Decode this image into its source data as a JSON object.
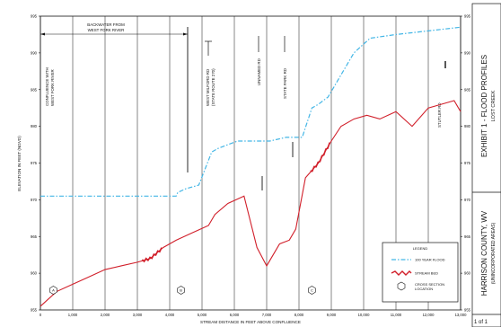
{
  "chart_data": {
    "type": "line",
    "xlabel": "STREAM DISTANCE IN FEET ABOVE CONFLUENCE",
    "ylabel": "ELEVATION IN FEET (NGVD)",
    "xlim": [
      0,
      13000
    ],
    "ylim": [
      955,
      995
    ],
    "x_ticks": [
      "0",
      "1,000",
      "2,000",
      "3,000",
      "4,000",
      "5,000",
      "6,000",
      "7,000",
      "8,000",
      "9,000",
      "10,000",
      "11,000",
      "12,000",
      "13,000"
    ],
    "y_ticks": [
      "955",
      "960",
      "965",
      "970",
      "975",
      "980",
      "985",
      "990",
      "995"
    ],
    "series": [
      {
        "name": "100 YEAR FLOOD",
        "x": [
          0,
          4200,
          4250,
          4500,
          4900,
          5300,
          5500,
          6100,
          7100,
          7600,
          8100,
          8400,
          8600,
          8900,
          9300,
          9700,
          10200,
          11000,
          12000,
          13000
        ],
        "y": [
          970.5,
          970.5,
          971.0,
          971.5,
          972.0,
          976.5,
          977.0,
          978.0,
          978.0,
          978.5,
          978.5,
          982.5,
          983.0,
          984.0,
          987.0,
          990.0,
          992.0,
          992.5,
          993.0,
          993.5
        ]
      },
      {
        "name": "STREAM BED",
        "x": [
          0,
          500,
          1000,
          1500,
          2000,
          2500,
          3000,
          3400,
          3800,
          4200,
          4700,
          5200,
          5400,
          5800,
          6300,
          6700,
          7000,
          7400,
          7700,
          7900,
          8200,
          8600,
          9000,
          9300,
          9700,
          10100,
          10500,
          11000,
          11500,
          12000,
          12400,
          12800,
          13000
        ],
        "y": [
          955.5,
          957.5,
          958.5,
          959.5,
          960.5,
          961.0,
          961.5,
          962.0,
          963.5,
          964.5,
          965.5,
          966.5,
          968.0,
          969.5,
          970.5,
          963.5,
          961.0,
          964.0,
          964.5,
          966.0,
          973.0,
          975.0,
          978.0,
          980.0,
          981.0,
          981.5,
          981.0,
          982.0,
          980.0,
          982.5,
          983.0,
          983.5,
          982.0
        ]
      }
    ],
    "legend_position": "bottom-right",
    "grid": true
  },
  "annotations": {
    "backwater_line1": "BACKWATER FROM",
    "backwater_line2": "WEST FORK RIVER",
    "confluence_line1": "CONFLUENCE WITH",
    "confluence_line2": "WEST FORK RIVER",
    "west_milford_line1": "WEST MILFORD RD",
    "west_milford_line2": "(STATE ROUTE 270)",
    "unnamed_rd": "UNNAMED RD",
    "state_park_rd": "STATE PARK RD",
    "stutler_rd": "STUTLER RD"
  },
  "section_markers": [
    {
      "letter": "A",
      "x": 400
    },
    {
      "letter": "B",
      "x": 4350
    },
    {
      "letter": "C",
      "x": 8400
    }
  ],
  "legend": {
    "title": "LEGEND",
    "flood": "100 YEAR FLOOD",
    "bed": "STREAM BED",
    "cross_line1": "CROSS SECTION",
    "cross_line2": "LOCATION"
  },
  "titleblock": {
    "exhibit_line1": "EXHIBIT 1 - FLOOD PROFILES",
    "exhibit_line2": "LOST CREEK",
    "county_line1": "HARRISON COUNTY, WV",
    "county_line2": "(UNINCORPORATED AREAS)",
    "sheet": "1 of 1"
  },
  "colors": {
    "flood": "#43b6e6",
    "bed": "#d11f2a",
    "grid": "#000000"
  }
}
